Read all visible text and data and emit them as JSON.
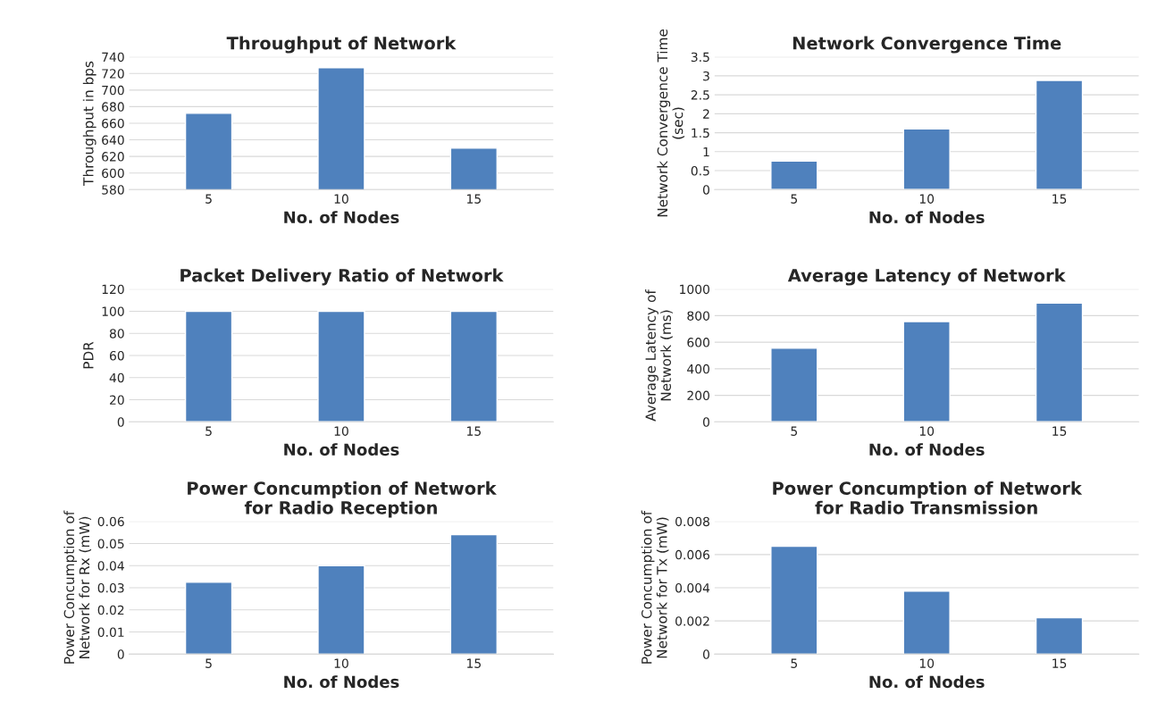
{
  "chart_data": [
    {
      "type": "bar",
      "title": "Throughput of Network",
      "xlabel": "No. of Nodes",
      "ylabel": "Throughput in bps",
      "categories": [
        "5",
        "10",
        "15"
      ],
      "values": [
        672,
        727,
        630
      ],
      "color": "#4f81bd",
      "ylim": [
        580,
        740
      ],
      "yticks": [
        580,
        600,
        620,
        640,
        660,
        680,
        700,
        720,
        740
      ],
      "grid": "y"
    },
    {
      "type": "bar",
      "title": "Network Convergence Time",
      "xlabel": "No. of Nodes",
      "ylabel": "Network Convergence Time\n(sec)",
      "categories": [
        "5",
        "10",
        "15"
      ],
      "values": [
        0.75,
        1.6,
        2.88
      ],
      "color": "#4f81bd",
      "ylim": [
        0,
        3.5
      ],
      "yticks": [
        0,
        0.5,
        1,
        1.5,
        2,
        2.5,
        3,
        3.5
      ],
      "grid": "y"
    },
    {
      "type": "bar",
      "title": "Packet Delivery Ratio of Network",
      "xlabel": "No. of Nodes",
      "ylabel": "PDR",
      "categories": [
        "5",
        "10",
        "15"
      ],
      "values": [
        100,
        100,
        100
      ],
      "color": "#4f81bd",
      "ylim": [
        0,
        120
      ],
      "yticks": [
        0,
        20,
        40,
        60,
        80,
        100,
        120
      ],
      "grid": "y"
    },
    {
      "type": "bar",
      "title": "Average Latency of Network",
      "xlabel": "No. of Nodes",
      "ylabel": "Average Latency of\nNetwork (ms)",
      "categories": [
        "5",
        "10",
        "15"
      ],
      "values": [
        555,
        755,
        895
      ],
      "color": "#4f81bd",
      "ylim": [
        0,
        1000
      ],
      "yticks": [
        0,
        200,
        400,
        600,
        800,
        1000
      ],
      "grid": "y"
    },
    {
      "type": "bar",
      "title": "Power Concumption of Network\nfor Radio Reception",
      "xlabel": "No. of Nodes",
      "ylabel": "Power Concumption of\nNetwork for Rx (mW)",
      "categories": [
        "5",
        "10",
        "15"
      ],
      "values": [
        0.0325,
        0.04,
        0.054
      ],
      "color": "#4f81bd",
      "ylim": [
        0,
        0.06
      ],
      "yticks": [
        0,
        0.01,
        0.02,
        0.03,
        0.04,
        0.05,
        0.06
      ],
      "grid": "y"
    },
    {
      "type": "bar",
      "title": "Power Concumption of Network\nfor Radio Transmission",
      "xlabel": "No. of Nodes",
      "ylabel": "Power Concumption of\nNetwork for Tx (mW)",
      "categories": [
        "5",
        "10",
        "15"
      ],
      "values": [
        0.0065,
        0.0038,
        0.0022
      ],
      "color": "#4f81bd",
      "ylim": [
        0,
        0.008
      ],
      "yticks": [
        0,
        0.002,
        0.004,
        0.006,
        0.008
      ],
      "grid": "y"
    }
  ]
}
